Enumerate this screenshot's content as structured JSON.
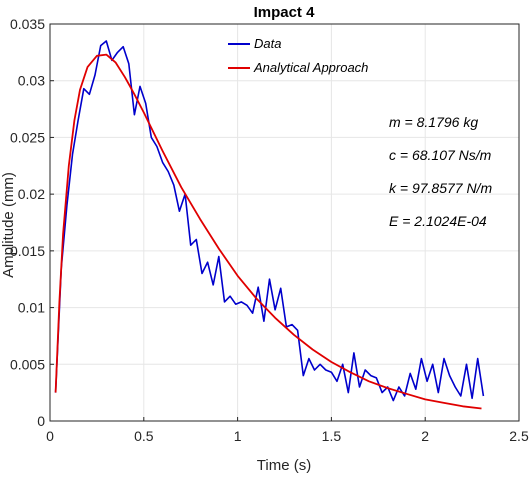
{
  "chart_data": {
    "type": "line",
    "title": "Impact 4",
    "xlabel": "Time (s)",
    "ylabel": "Amplitude (mm)",
    "xlim": [
      0,
      2.5
    ],
    "ylim": [
      0,
      0.035
    ],
    "xticks": [
      "0",
      "0.5",
      "1",
      "1.5",
      "2",
      "2.5"
    ],
    "yticks": [
      "0",
      "0.005",
      "0.01",
      "0.015",
      "0.02",
      "0.025",
      "0.03",
      "0.035"
    ],
    "grid": true,
    "legend_position": "top-center",
    "series": [
      {
        "name": "Data",
        "color": "#0000cc",
        "x": [
          0.03,
          0.06,
          0.09,
          0.12,
          0.15,
          0.18,
          0.21,
          0.24,
          0.27,
          0.3,
          0.33,
          0.36,
          0.39,
          0.42,
          0.45,
          0.48,
          0.51,
          0.54,
          0.57,
          0.6,
          0.63,
          0.66,
          0.69,
          0.72,
          0.75,
          0.78,
          0.81,
          0.84,
          0.87,
          0.9,
          0.93,
          0.96,
          0.99,
          1.02,
          1.05,
          1.08,
          1.11,
          1.14,
          1.17,
          1.2,
          1.23,
          1.26,
          1.29,
          1.32,
          1.35,
          1.38,
          1.41,
          1.44,
          1.47,
          1.5,
          1.53,
          1.56,
          1.59,
          1.62,
          1.65,
          1.68,
          1.71,
          1.74,
          1.77,
          1.8,
          1.83,
          1.86,
          1.89,
          1.92,
          1.95,
          1.98,
          2.01,
          2.04,
          2.07,
          2.1,
          2.13,
          2.16,
          2.19,
          2.22,
          2.25,
          2.28,
          2.31
        ],
        "y": [
          0.0025,
          0.0135,
          0.019,
          0.0235,
          0.0265,
          0.0293,
          0.0288,
          0.0305,
          0.0331,
          0.0335,
          0.0318,
          0.0325,
          0.033,
          0.0315,
          0.027,
          0.0295,
          0.028,
          0.025,
          0.0242,
          0.0228,
          0.022,
          0.0208,
          0.0185,
          0.02,
          0.0155,
          0.016,
          0.013,
          0.014,
          0.012,
          0.0145,
          0.0105,
          0.011,
          0.0103,
          0.0105,
          0.0102,
          0.0095,
          0.0118,
          0.0088,
          0.0125,
          0.0098,
          0.0117,
          0.0083,
          0.0085,
          0.008,
          0.004,
          0.0055,
          0.0045,
          0.005,
          0.0045,
          0.0043,
          0.0035,
          0.005,
          0.0025,
          0.006,
          0.003,
          0.0045,
          0.004,
          0.0038,
          0.0025,
          0.003,
          0.0018,
          0.003,
          0.0022,
          0.0042,
          0.0028,
          0.0055,
          0.0035,
          0.005,
          0.0025,
          0.0055,
          0.004,
          0.003,
          0.0022,
          0.005,
          0.002,
          0.0055,
          0.0022
        ]
      },
      {
        "name": "Analytical Approach",
        "color": "#e00000",
        "x": [
          0.03,
          0.05,
          0.07,
          0.1,
          0.13,
          0.16,
          0.2,
          0.25,
          0.3,
          0.35,
          0.4,
          0.45,
          0.5,
          0.6,
          0.7,
          0.8,
          0.9,
          1.0,
          1.1,
          1.2,
          1.3,
          1.4,
          1.5,
          1.6,
          1.7,
          1.8,
          1.9,
          2.0,
          2.1,
          2.2,
          2.3
        ],
        "y": [
          0.0025,
          0.0105,
          0.0165,
          0.0225,
          0.0265,
          0.0292,
          0.0312,
          0.0322,
          0.0323,
          0.0316,
          0.0303,
          0.0288,
          0.0272,
          0.0238,
          0.0206,
          0.0178,
          0.0152,
          0.0128,
          0.0108,
          0.0091,
          0.0076,
          0.0063,
          0.0052,
          0.0043,
          0.0035,
          0.0029,
          0.0024,
          0.0019,
          0.0016,
          0.0013,
          0.0011
        ]
      }
    ],
    "annotations": [
      "m = 8.1796 kg",
      "c = 68.107 Ns/m",
      "k = 97.8577 N/m",
      "E = 2.1024E-04"
    ]
  }
}
